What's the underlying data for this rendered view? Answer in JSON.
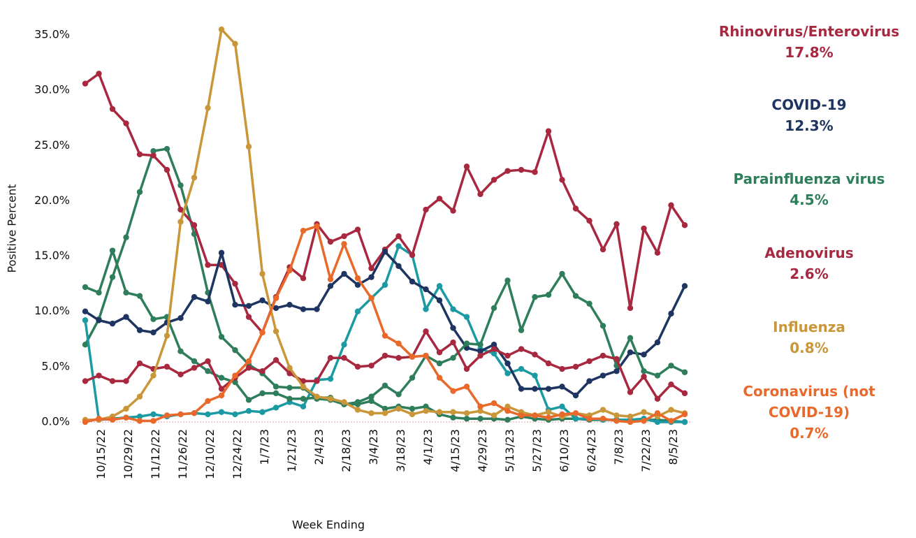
{
  "chart_data": {
    "type": "line",
    "x_label": "Week Ending",
    "y_label": "Positive Percent",
    "categories": [
      null,
      "10/15/22",
      null,
      "10/29/22",
      null,
      "11/12/22",
      null,
      "11/26/22",
      null,
      "12/10/22",
      null,
      "12/24/22",
      null,
      "1/7/23",
      null,
      "1/21/23",
      null,
      "2/4/23",
      null,
      "2/18/23",
      null,
      "3/4/23",
      null,
      "3/18/23",
      null,
      "4/1/23",
      null,
      "4/15/23",
      null,
      "4/29/23",
      null,
      "5/13/23",
      null,
      "5/27/23",
      null,
      "6/10/23",
      null,
      "6/24/23",
      null,
      "7/8/23",
      null,
      "7/22/23",
      null,
      "8/5/23",
      null
    ],
    "ylim": [
      0,
      35
    ],
    "yticks": [
      {
        "value": 0,
        "label": "0.0%"
      },
      {
        "value": 5,
        "label": "5.0%"
      },
      {
        "value": 10,
        "label": "10.0%"
      },
      {
        "value": 15,
        "label": "15.0%"
      },
      {
        "value": 20,
        "label": "20.0%"
      },
      {
        "value": 25,
        "label": "25.0%"
      },
      {
        "value": 30,
        "label": "30.0%"
      },
      {
        "value": 35,
        "label": "35.0%"
      }
    ],
    "zero_line": true,
    "series": [
      {
        "color": "#2e7d5b",
        "values": [
          7.0,
          9.3,
          13.1,
          16.7,
          20.8,
          24.5,
          24.7,
          21.4,
          17.0,
          11.7,
          7.7,
          6.5,
          5.2,
          4.4,
          3.2,
          3.1,
          3.1,
          2.1,
          2.0,
          1.6,
          1.6,
          1.9,
          1.2,
          1.4,
          1.2,
          1.4,
          0.7,
          0.4,
          0.3,
          0.3,
          0.3,
          0.2,
          0.5,
          0.3,
          0.2,
          0.3,
          0.3,
          0.2,
          0.2,
          0.2,
          0.2,
          0.2,
          0.2,
          0.1,
          0.0
        ]
      },
      {
        "color": "#1b9aa3",
        "values": [
          9.2,
          0.2,
          0.3,
          0.4,
          0.5,
          0.7,
          0.5,
          0.7,
          0.8,
          0.7,
          0.9,
          0.7,
          1.0,
          0.9,
          1.3,
          1.8,
          1.4,
          3.8,
          3.9,
          7.0,
          10.0,
          11.2,
          12.4,
          15.9,
          15.1,
          10.2,
          12.3,
          10.2,
          9.5,
          6.6,
          6.2,
          4.4,
          4.8,
          4.2,
          1.1,
          1.4,
          0.3,
          0.3,
          0.2,
          0.2,
          0.2,
          0.3,
          0.0,
          0.0,
          0.0
        ]
      },
      {
        "name": "Rhinovirus/Enterovirus",
        "color": "#a8283f",
        "values": [
          30.6,
          31.5,
          28.3,
          27.0,
          24.2,
          24.1,
          22.8,
          19.2,
          17.8,
          14.2,
          14.2,
          12.5,
          9.5,
          8.1,
          11.3,
          14.0,
          13.0,
          17.9,
          16.3,
          16.8,
          17.4,
          13.9,
          15.6,
          16.8,
          15.1,
          19.2,
          20.2,
          19.1,
          23.1,
          20.6,
          21.9,
          22.7,
          22.8,
          22.6,
          26.3,
          21.9,
          19.3,
          18.2,
          15.6,
          17.9,
          10.3,
          17.5,
          15.3,
          19.6,
          17.8
        ],
        "value_labels": [
          null,
          null,
          null,
          null,
          null,
          null,
          null,
          null,
          null,
          null,
          null,
          null,
          null,
          null,
          null,
          null,
          null,
          null,
          null,
          null,
          null,
          null,
          null,
          null,
          null,
          null,
          null,
          null,
          null,
          null,
          null,
          null,
          null,
          null,
          null,
          null,
          null,
          null,
          null,
          null,
          null,
          null,
          null,
          null,
          "17.8%"
        ]
      },
      {
        "name": "COVID-19",
        "color": "#1f3561",
        "values": [
          10.0,
          9.2,
          8.9,
          9.5,
          8.3,
          8.1,
          9.0,
          9.4,
          11.3,
          10.9,
          15.3,
          10.6,
          10.5,
          11.0,
          10.3,
          10.6,
          10.2,
          10.2,
          12.3,
          13.4,
          12.4,
          13.1,
          15.4,
          14.1,
          12.7,
          12.0,
          11.0,
          8.5,
          6.7,
          6.4,
          7.0,
          5.3,
          3.0,
          3.0,
          3.0,
          3.2,
          2.4,
          3.7,
          4.2,
          4.6,
          6.3,
          6.1,
          7.2,
          9.8,
          12.3
        ],
        "value_labels": [
          null,
          null,
          null,
          null,
          null,
          null,
          null,
          null,
          null,
          null,
          null,
          null,
          null,
          null,
          null,
          null,
          null,
          null,
          null,
          null,
          null,
          null,
          null,
          null,
          null,
          null,
          null,
          null,
          null,
          null,
          null,
          null,
          null,
          null,
          null,
          null,
          null,
          null,
          null,
          null,
          null,
          null,
          null,
          null,
          "12.3%"
        ]
      },
      {
        "name": "Parainfluenza virus",
        "color": "#2e7d5b",
        "values": [
          12.2,
          11.7,
          15.5,
          11.7,
          11.4,
          9.3,
          9.5,
          6.4,
          5.5,
          4.6,
          4.0,
          3.6,
          2.0,
          2.6,
          2.6,
          2.1,
          2.1,
          2.2,
          2.2,
          1.6,
          1.8,
          2.3,
          3.3,
          2.5,
          4.0,
          6.0,
          5.3,
          5.8,
          7.1,
          7.0,
          10.3,
          12.8,
          8.3,
          11.3,
          11.5,
          13.4,
          11.4,
          10.7,
          8.7,
          5.1,
          7.6,
          4.6,
          4.2,
          5.1,
          4.5
        ],
        "value_labels": [
          null,
          null,
          null,
          null,
          null,
          null,
          null,
          null,
          null,
          null,
          null,
          null,
          null,
          null,
          null,
          null,
          null,
          null,
          null,
          null,
          null,
          null,
          null,
          null,
          null,
          null,
          null,
          null,
          null,
          null,
          null,
          null,
          null,
          null,
          null,
          null,
          null,
          null,
          null,
          null,
          null,
          null,
          null,
          null,
          "4.5%"
        ]
      },
      {
        "name": "Adenovirus",
        "color": "#a8283f",
        "values": [
          3.7,
          4.2,
          3.7,
          3.7,
          5.3,
          4.8,
          5.0,
          4.3,
          4.9,
          5.5,
          3.0,
          4.0,
          4.9,
          4.6,
          5.6,
          4.4,
          3.7,
          3.7,
          5.8,
          5.8,
          5.0,
          5.1,
          6.0,
          5.8,
          5.9,
          8.2,
          6.3,
          7.2,
          4.8,
          6.0,
          6.6,
          6.0,
          6.6,
          6.1,
          5.3,
          4.8,
          5.0,
          5.5,
          6.0,
          5.7,
          2.7,
          4.1,
          2.1,
          3.4,
          2.6
        ],
        "value_labels": [
          null,
          null,
          null,
          null,
          null,
          null,
          null,
          null,
          null,
          null,
          null,
          null,
          null,
          null,
          null,
          null,
          null,
          null,
          null,
          null,
          null,
          null,
          null,
          null,
          null,
          null,
          null,
          null,
          null,
          null,
          null,
          null,
          null,
          null,
          null,
          null,
          null,
          null,
          null,
          null,
          null,
          null,
          null,
          null,
          "2.6%"
        ]
      },
      {
        "name": "Influenza",
        "color": "#c9973a",
        "values": [
          0.2,
          0.2,
          0.5,
          1.2,
          2.3,
          4.2,
          7.8,
          18.1,
          22.1,
          28.4,
          35.5,
          34.2,
          24.9,
          13.4,
          8.2,
          4.9,
          3.2,
          2.3,
          2.1,
          1.8,
          1.1,
          0.8,
          0.8,
          1.2,
          0.7,
          1.0,
          0.9,
          0.9,
          0.8,
          1.0,
          0.6,
          1.4,
          0.9,
          0.6,
          0.9,
          0.5,
          0.8,
          0.6,
          1.1,
          0.6,
          0.5,
          0.9,
          0.5,
          1.1,
          0.8
        ],
        "value_labels": [
          null,
          null,
          null,
          null,
          null,
          null,
          null,
          null,
          null,
          null,
          null,
          null,
          null,
          null,
          null,
          null,
          null,
          null,
          null,
          null,
          null,
          null,
          null,
          null,
          null,
          null,
          null,
          null,
          null,
          null,
          null,
          null,
          null,
          null,
          null,
          null,
          null,
          null,
          null,
          null,
          null,
          null,
          null,
          null,
          "0.8%"
        ]
      },
      {
        "name": "Coronavirus (not COVID-19)",
        "color": "#e8692a",
        "values": [
          0.0,
          0.3,
          0.2,
          0.4,
          0.1,
          0.1,
          0.6,
          0.7,
          0.8,
          1.9,
          2.4,
          4.2,
          5.5,
          8.1,
          11.2,
          13.7,
          17.3,
          17.7,
          12.9,
          16.1,
          13.0,
          11.2,
          7.8,
          7.1,
          5.9,
          6.0,
          4.0,
          2.8,
          3.2,
          1.4,
          1.7,
          1.0,
          0.6,
          0.6,
          0.4,
          0.7,
          0.8,
          0.3,
          0.3,
          0.1,
          0.0,
          0.1,
          0.8,
          0.1,
          0.7
        ],
        "value_labels": [
          null,
          null,
          null,
          null,
          null,
          null,
          null,
          null,
          null,
          null,
          null,
          null,
          null,
          null,
          null,
          null,
          null,
          null,
          null,
          null,
          null,
          null,
          null,
          null,
          null,
          null,
          null,
          null,
          null,
          null,
          null,
          null,
          null,
          null,
          null,
          null,
          null,
          null,
          null,
          null,
          null,
          null,
          null,
          null,
          "0.7%"
        ]
      }
    ]
  }
}
